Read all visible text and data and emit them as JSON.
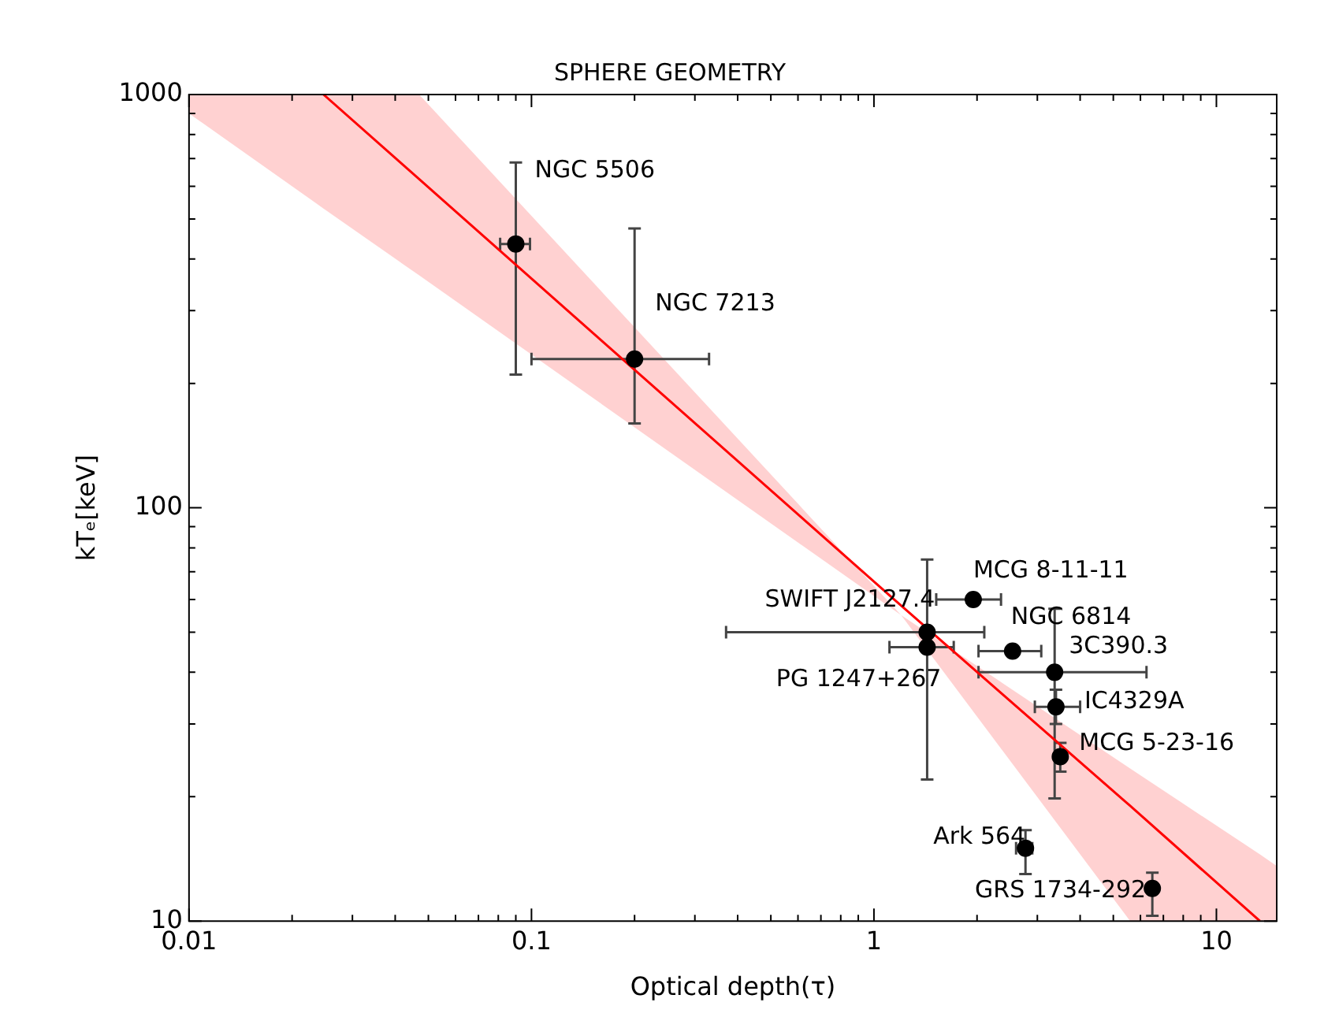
{
  "chart_data": {
    "type": "scatter",
    "title": "SPHERE GEOMETRY",
    "xlabel": "Optical depth(τ)",
    "ylabel": "kTₑ[keV]",
    "log": "xy",
    "grid": false,
    "legend": false,
    "xlim": [
      0.01,
      15
    ],
    "ylim": [
      10,
      1000
    ],
    "xticks": [
      0.01,
      {
        "value": 0.02,
        "label": null
      },
      {
        "value": 0.03,
        "label": null
      },
      {
        "value": 0.04,
        "label": null
      },
      {
        "value": 0.05,
        "label": null
      },
      {
        "value": 0.06,
        "label": null
      },
      {
        "value": 0.07,
        "label": null
      },
      {
        "value": 0.08,
        "label": null
      },
      {
        "value": 0.09,
        "label": null
      },
      0.1,
      {
        "value": 0.2,
        "label": null
      },
      {
        "value": 0.3,
        "label": null
      },
      {
        "value": 0.4,
        "label": null
      },
      {
        "value": 0.5,
        "label": null
      },
      {
        "value": 0.6,
        "label": null
      },
      {
        "value": 0.7,
        "label": null
      },
      {
        "value": 0.8,
        "label": null
      },
      {
        "value": 0.9,
        "label": null
      },
      1,
      {
        "value": 2,
        "label": null
      },
      {
        "value": 3,
        "label": null
      },
      {
        "value": 4,
        "label": null
      },
      {
        "value": 5,
        "label": null
      },
      {
        "value": 6,
        "label": null
      },
      {
        "value": 7,
        "label": null
      },
      {
        "value": 8,
        "label": null
      },
      {
        "value": 9,
        "label": null
      },
      10
    ],
    "yticks": [
      10,
      {
        "value": 20,
        "label": null
      },
      {
        "value": 30,
        "label": null
      },
      {
        "value": 40,
        "label": null
      },
      {
        "value": 50,
        "label": null
      },
      {
        "value": 60,
        "label": null
      },
      {
        "value": 70,
        "label": null
      },
      {
        "value": 80,
        "label": null
      },
      {
        "value": 90,
        "label": null
      },
      100,
      {
        "value": 200,
        "label": null
      },
      {
        "value": 300,
        "label": null
      },
      {
        "value": 400,
        "label": null
      },
      {
        "value": 500,
        "label": null
      },
      {
        "value": 600,
        "label": null
      },
      {
        "value": 700,
        "label": null
      },
      {
        "value": 800,
        "label": null
      },
      {
        "value": 900,
        "label": null
      },
      1000
    ],
    "series": [
      {
        "type": "line",
        "color": "#ff0000",
        "x": [
          0.01,
          0.0247,
          0.047,
          1.2,
          5.6,
          13.4,
          15
        ],
        "values": [
          null,
          1000,
          624,
          58,
          19,
          10,
          null
        ],
        "lower": [
          900,
          530,
          365,
          55,
          10,
          10,
          10
        ],
        "upper": [
          1000,
          1000,
          1000,
          55,
          23.4,
          14.5,
          13.6
        ]
      },
      {
        "type": "scatter",
        "color": "#000000",
        "marker": "circle",
        "x": [
          0.09,
          0.2,
          1.43,
          1.43,
          1.95,
          2.54,
          3.37,
          3.4,
          3.5,
          2.77,
          6.5
        ],
        "values": [
          435,
          229,
          50,
          46,
          60,
          45,
          40,
          33,
          25,
          15,
          12
        ],
        "errors": [
          [
            210,
            685
          ],
          [
            160,
            474
          ],
          [
            22,
            75
          ],
          null,
          null,
          null,
          [
            19.8,
            57
          ],
          [
            30,
            36.3
          ],
          [
            23,
            27
          ],
          [
            13,
            16.6
          ],
          [
            10.3,
            13.1
          ]
        ],
        "xerrors": [
          [
            0.081,
            0.099
          ],
          [
            0.1,
            0.33
          ],
          [
            0.37,
            2.1
          ],
          [
            1.11,
            1.71
          ],
          [
            1.52,
            2.35
          ],
          [
            2.02,
            3.08
          ],
          [
            2.02,
            6.25
          ],
          [
            2.95,
            4.0
          ],
          null,
          [
            2.6,
            2.9
          ],
          null
        ]
      }
    ],
    "annotations": [
      {
        "text": "NGC 5506",
        "x": 0.09,
        "y": 435
      },
      {
        "text": "NGC 7213",
        "x": 0.2,
        "y": 229
      },
      {
        "text": "SWIFT J2127.4",
        "x": 1.43,
        "y": 50
      },
      {
        "text": "PG 1247+267",
        "x": 1.43,
        "y": 46
      },
      {
        "text": "MCG 8-11-11",
        "x": 1.95,
        "y": 60
      },
      {
        "text": "NGC 6814",
        "x": 2.54,
        "y": 45
      },
      {
        "text": "3C390.3",
        "x": 3.37,
        "y": 40
      },
      {
        "text": "IC4329A",
        "x": 3.4,
        "y": 33
      },
      {
        "text": "MCG 5-23-16",
        "x": 3.5,
        "y": 25
      },
      {
        "text": "Ark 564",
        "x": 2.77,
        "y": 15
      },
      {
        "text": "GRS 1734-292",
        "x": 6.5,
        "y": 12
      }
    ]
  }
}
